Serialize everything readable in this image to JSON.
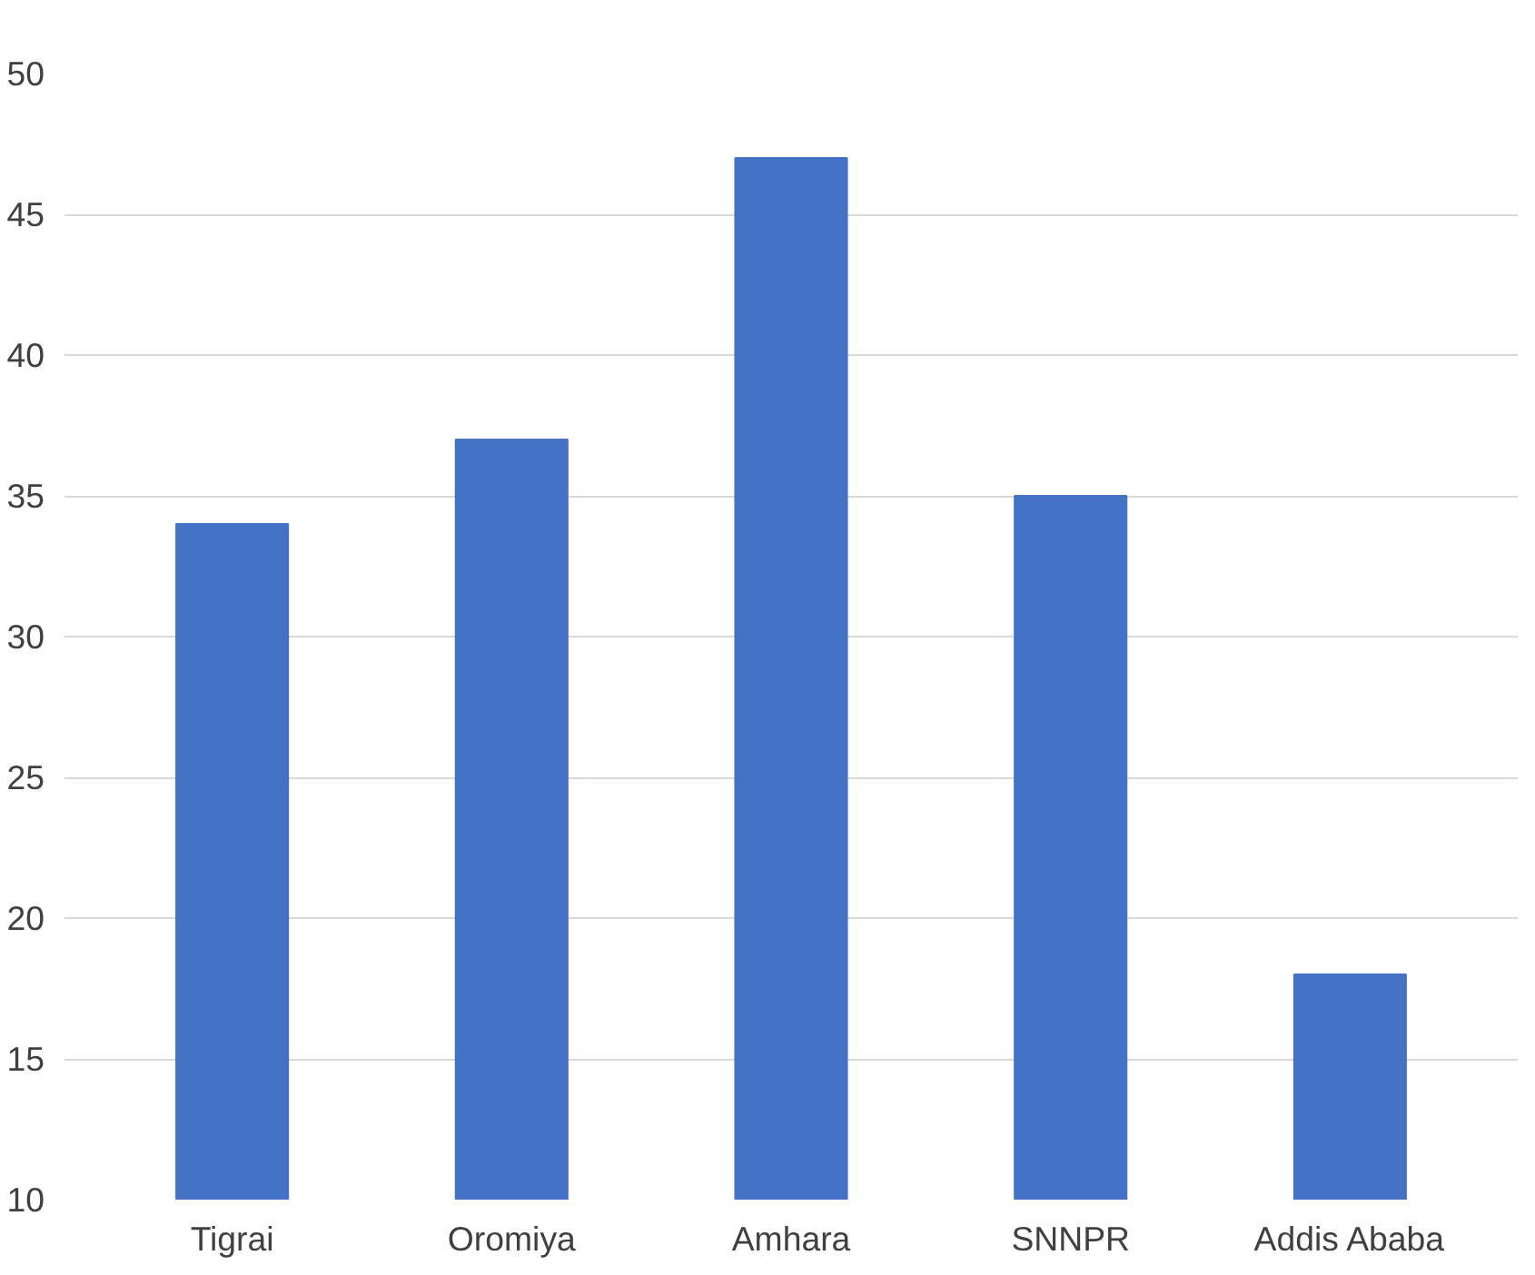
{
  "chart_data": {
    "type": "bar",
    "categories": [
      "Tigrai",
      "Oromiya",
      "Amhara",
      "SNNPR",
      "Addis Ababa"
    ],
    "values": [
      34,
      37,
      47,
      35,
      18
    ],
    "color": "#4472c4",
    "ylim": [
      10,
      50
    ],
    "yticks": [
      10,
      15,
      20,
      25,
      30,
      35,
      40,
      45,
      50
    ],
    "grid": "y"
  }
}
